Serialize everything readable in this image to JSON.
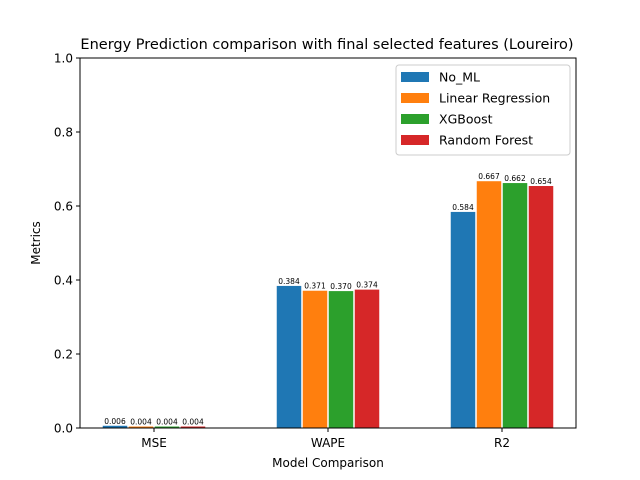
{
  "chart_data": {
    "type": "bar",
    "title": "Energy Prediction comparison with final selected features (Loureiro)",
    "xlabel": "Model Comparison",
    "ylabel": "Metrics",
    "ylim": [
      0,
      1.0
    ],
    "yticks": [
      "0.0",
      "0.2",
      "0.4",
      "0.6",
      "0.8",
      "1.0"
    ],
    "categories": [
      "MSE",
      "WAPE",
      "R2"
    ],
    "legend_position": "top-right",
    "grid": false,
    "series": [
      {
        "name": "No_ML",
        "color": "#1f77b4",
        "values": [
          0.006,
          0.384,
          0.584
        ],
        "labels": [
          "0.006",
          "0.384",
          "0.584"
        ]
      },
      {
        "name": "Linear Regression",
        "color": "#ff7f0e",
        "values": [
          0.004,
          0.371,
          0.667
        ],
        "labels": [
          "0.004",
          "0.371",
          "0.667"
        ]
      },
      {
        "name": "XGBoost",
        "color": "#2ca02c",
        "values": [
          0.004,
          0.37,
          0.662
        ],
        "labels": [
          "0.004",
          "0.370",
          "0.662"
        ]
      },
      {
        "name": "Random Forest",
        "color": "#d62728",
        "values": [
          0.004,
          0.374,
          0.654
        ],
        "labels": [
          "0.004",
          "0.374",
          "0.654"
        ]
      }
    ]
  }
}
